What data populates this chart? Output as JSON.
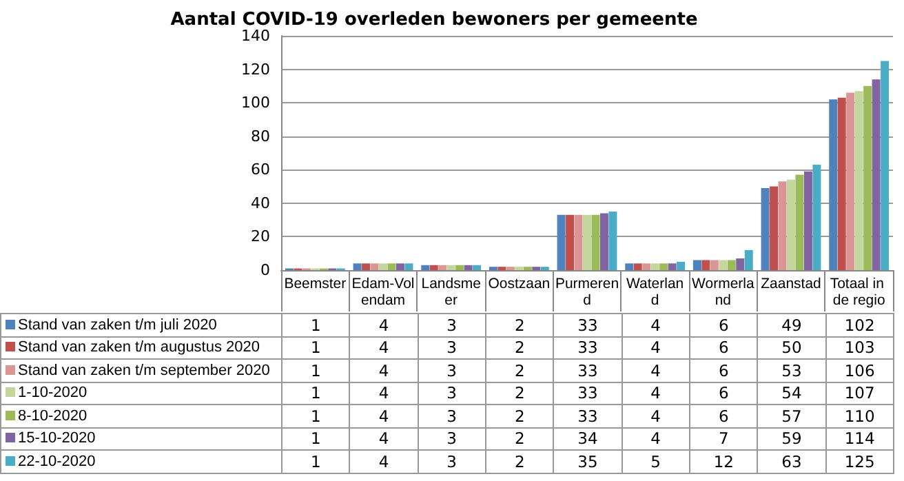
{
  "chart_data": {
    "type": "bar",
    "title": "Aantal COVID-19 overleden bewoners per gemeente",
    "categories": [
      "Beemster",
      "Edam-Volendam",
      "Landsmeer",
      "Oostzaan",
      "Purmerend",
      "Waterland",
      "Wormerland",
      "Zaanstad",
      "Totaal in de regio"
    ],
    "series": [
      {
        "name": "Stand van zaken t/m juli 2020",
        "color": "#4f81bd",
        "values": [
          1,
          4,
          3,
          2,
          33,
          4,
          6,
          49,
          102
        ]
      },
      {
        "name": "Stand van zaken t/m augustus 2020",
        "color": "#c0504d",
        "values": [
          1,
          4,
          3,
          2,
          33,
          4,
          6,
          50,
          103
        ]
      },
      {
        "name": "Stand van zaken t/m september 2020",
        "color": "#d99694",
        "values": [
          1,
          4,
          3,
          2,
          33,
          4,
          6,
          53,
          106
        ]
      },
      {
        "name": "1-10-2020",
        "color": "#c3d69b",
        "values": [
          1,
          4,
          3,
          2,
          33,
          4,
          6,
          54,
          107
        ]
      },
      {
        "name": "8-10-2020",
        "color": "#9bbb59",
        "values": [
          1,
          4,
          3,
          2,
          33,
          4,
          6,
          57,
          110
        ]
      },
      {
        "name": "15-10-2020",
        "color": "#8064a2",
        "values": [
          1,
          4,
          3,
          2,
          34,
          4,
          7,
          59,
          114
        ]
      },
      {
        "name": "22-10-2020",
        "color": "#4bacc6",
        "values": [
          1,
          4,
          3,
          2,
          35,
          5,
          12,
          63,
          125
        ]
      }
    ],
    "ylim": [
      0,
      140
    ],
    "yticks": [
      0,
      20,
      40,
      60,
      80,
      100,
      120,
      140
    ],
    "grid": "y",
    "legend": "bottom",
    "data_labels": true
  }
}
